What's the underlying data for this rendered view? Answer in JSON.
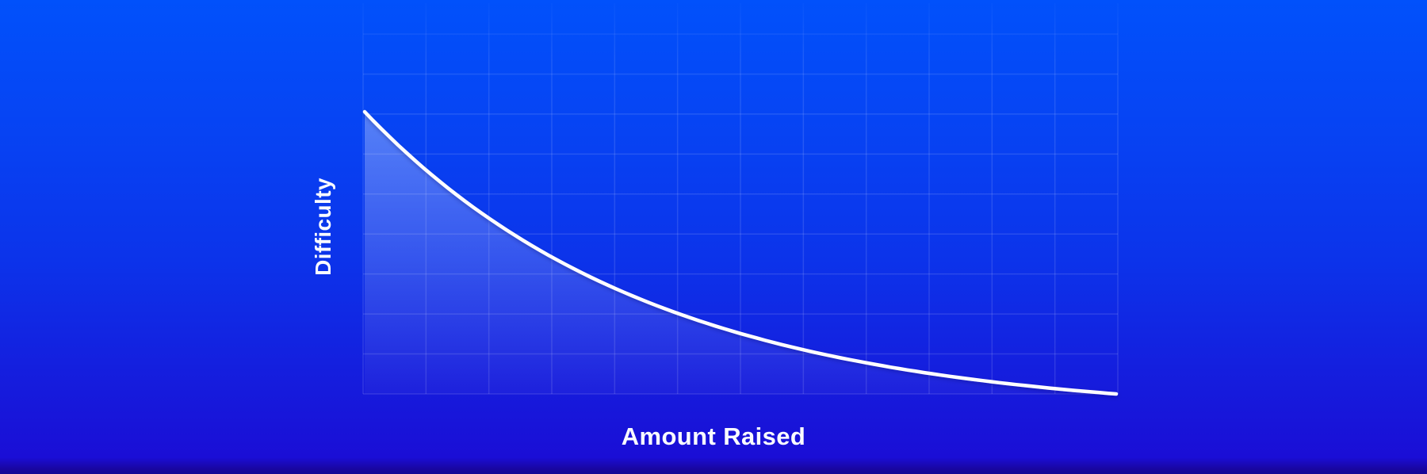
{
  "figure": {
    "background_top_color": "#0151fb",
    "background_bottom_color": "#1a0ed6",
    "bottom_edge_color": "#140795",
    "text_color": "#fafcff"
  },
  "chart_data": {
    "type": "line",
    "title": "",
    "xlabel": "Amount Raised",
    "ylabel": "Difficulty",
    "x_axis": {
      "ticks": [],
      "range_normalized": [
        0,
        1
      ]
    },
    "y_axis": {
      "ticks": [],
      "range_normalized": [
        0,
        1
      ]
    },
    "grid": {
      "visible": true,
      "columns": 12,
      "rows": 9,
      "line_color": "rgba(255,255,255,0.12)",
      "line_width": 1.5
    },
    "legend": {
      "visible": false
    },
    "series": [
      {
        "name": "difficulty-vs-amount-raised",
        "shape": "exponential-decay",
        "decay_k": 2.6,
        "x": [
          0,
          0.1,
          0.2,
          0.3,
          0.4,
          0.5,
          0.6,
          0.7,
          0.8,
          0.9,
          1.0
        ],
        "y": [
          1.0,
          0.753,
          0.562,
          0.415,
          0.301,
          0.214,
          0.147,
          0.095,
          0.055,
          0.024,
          0.0
        ],
        "line_color": "#ffffff",
        "line_width": 4.5,
        "area_fill_color": "#ffffff",
        "area_fill_top_opacity": 0.32,
        "area_fill_bottom_opacity": 0.03
      }
    ]
  }
}
